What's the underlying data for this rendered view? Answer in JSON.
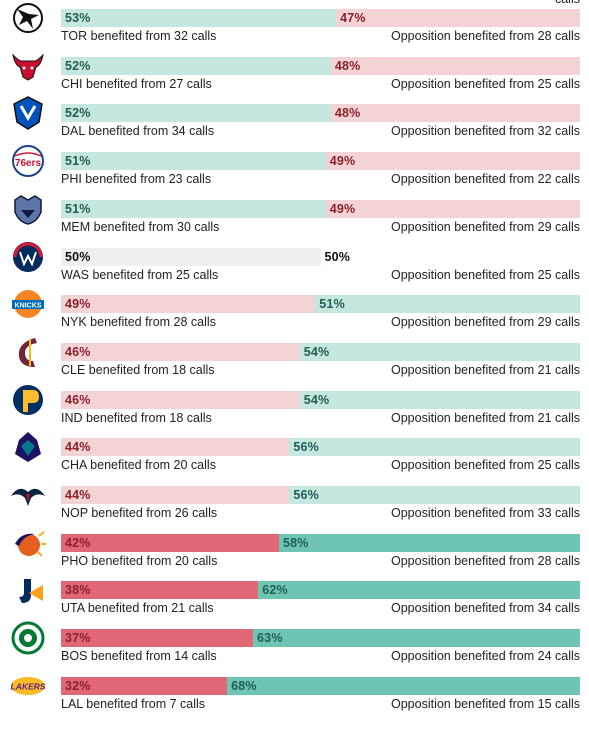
{
  "top_fragment": "calls",
  "colors": {
    "team_fav_light": "#c6e6e0",
    "team_fav_dark": "#6fc5b4",
    "team_unfav_light": "#f2d3d6",
    "team_unfav_dark": "#e06875",
    "even": "#efefef",
    "text_green": "#1e5e53",
    "text_red": "#8c1f2b",
    "text_dark": "#111111"
  },
  "chart_data": {
    "type": "bar",
    "stacked": true,
    "orientation": "horizontal",
    "categories": [
      "TOR",
      "CHI",
      "DAL",
      "PHI",
      "MEM",
      "WAS",
      "NYK",
      "CLE",
      "IND",
      "CHA",
      "NOP",
      "PHO",
      "UTA",
      "BOS",
      "LAL"
    ],
    "series": [
      {
        "values": [
          53,
          52,
          52,
          51,
          51,
          50,
          49,
          46,
          46,
          44,
          44,
          42,
          38,
          37,
          32
        ]
      },
      {
        "values": [
          47,
          48,
          48,
          49,
          49,
          50,
          51,
          54,
          54,
          56,
          56,
          58,
          62,
          63,
          68
        ]
      }
    ],
    "xlim": [
      0,
      100
    ]
  },
  "rows": [
    {
      "team": "TOR",
      "team_pct": 53,
      "opp_pct": 47,
      "team_pct_label": "53%",
      "opp_pct_label": "47%",
      "team_text": "TOR benefited from 32 calls",
      "opp_text": "Opposition benefited from 28 calls",
      "logo": "raptors-logo-icon"
    },
    {
      "team": "CHI",
      "team_pct": 52,
      "opp_pct": 48,
      "team_pct_label": "52%",
      "opp_pct_label": "48%",
      "team_text": "CHI benefited from 27 calls",
      "opp_text": "Opposition benefited from 25 calls",
      "logo": "bulls-logo-icon"
    },
    {
      "team": "DAL",
      "team_pct": 52,
      "opp_pct": 48,
      "team_pct_label": "52%",
      "opp_pct_label": "48%",
      "team_text": "DAL benefited from 34 calls",
      "opp_text": "Opposition benefited from 32 calls",
      "logo": "mavericks-logo-icon"
    },
    {
      "team": "PHI",
      "team_pct": 51,
      "opp_pct": 49,
      "team_pct_label": "51%",
      "opp_pct_label": "49%",
      "team_text": "PHI benefited from 23 calls",
      "opp_text": "Opposition benefited from 22 calls",
      "logo": "76ers-logo-icon",
      "logo_text": "76ers"
    },
    {
      "team": "MEM",
      "team_pct": 51,
      "opp_pct": 49,
      "team_pct_label": "51%",
      "opp_pct_label": "49%",
      "team_text": "MEM benefited from 30 calls",
      "opp_text": "Opposition benefited from 29 calls",
      "logo": "grizzlies-logo-icon"
    },
    {
      "team": "WAS",
      "team_pct": 50,
      "opp_pct": 50,
      "team_pct_label": "50%",
      "opp_pct_label": "50%",
      "team_text": "WAS benefited from 25 calls",
      "opp_text": "Opposition benefited from 25 calls",
      "logo": "wizards-logo-icon"
    },
    {
      "team": "NYK",
      "team_pct": 49,
      "opp_pct": 51,
      "team_pct_label": "49%",
      "opp_pct_label": "51%",
      "team_text": "NYK benefited from 28 calls",
      "opp_text": "Opposition benefited from 29 calls",
      "logo": "knicks-logo-icon",
      "logo_text": "KNICKS"
    },
    {
      "team": "CLE",
      "team_pct": 46,
      "opp_pct": 54,
      "team_pct_label": "46%",
      "opp_pct_label": "54%",
      "team_text": "CLE benefited from 18 calls",
      "opp_text": "Opposition benefited from 21 calls",
      "logo": "cavaliers-logo-icon"
    },
    {
      "team": "IND",
      "team_pct": 46,
      "opp_pct": 54,
      "team_pct_label": "46%",
      "opp_pct_label": "54%",
      "team_text": "IND benefited from 18 calls",
      "opp_text": "Opposition benefited from 21 calls",
      "logo": "pacers-logo-icon"
    },
    {
      "team": "CHA",
      "team_pct": 44,
      "opp_pct": 56,
      "team_pct_label": "44%",
      "opp_pct_label": "56%",
      "team_text": "CHA benefited from 20 calls",
      "opp_text": "Opposition benefited from 25 calls",
      "logo": "hornets-logo-icon"
    },
    {
      "team": "NOP",
      "team_pct": 44,
      "opp_pct": 56,
      "team_pct_label": "44%",
      "opp_pct_label": "56%",
      "team_text": "NOP benefited from 26 calls",
      "opp_text": "Opposition benefited from 33 calls",
      "logo": "pelicans-logo-icon"
    },
    {
      "team": "PHO",
      "team_pct": 42,
      "opp_pct": 58,
      "team_pct_label": "42%",
      "opp_pct_label": "58%",
      "team_text": "PHO benefited from 20 calls",
      "opp_text": "Opposition benefited from 28 calls",
      "logo": "suns-logo-icon"
    },
    {
      "team": "UTA",
      "team_pct": 38,
      "opp_pct": 62,
      "team_pct_label": "38%",
      "opp_pct_label": "62%",
      "team_text": "UTA benefited from 21 calls",
      "opp_text": "Opposition benefited from 34 calls",
      "logo": "jazz-logo-icon"
    },
    {
      "team": "BOS",
      "team_pct": 37,
      "opp_pct": 63,
      "team_pct_label": "37%",
      "opp_pct_label": "63%",
      "team_text": "BOS benefited from 14 calls",
      "opp_text": "Opposition benefited from 24 calls",
      "logo": "celtics-logo-icon"
    },
    {
      "team": "LAL",
      "team_pct": 32,
      "opp_pct": 68,
      "team_pct_label": "32%",
      "opp_pct_label": "68%",
      "team_text": "LAL benefited from 7 calls",
      "opp_text": "Opposition benefited from 15 calls",
      "logo": "lakers-logo-icon",
      "logo_text": "LAKERS"
    }
  ]
}
